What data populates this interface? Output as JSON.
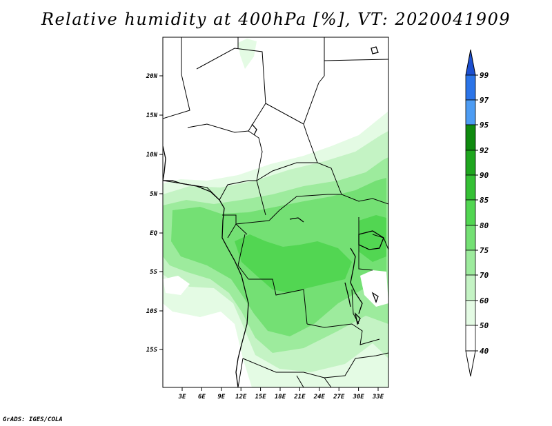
{
  "title": "Relative humidity at 400hPa [%], VT: 2020041909",
  "credit": "GrADS: IGES/COLA",
  "map": {
    "lat_labels": [
      "20N",
      "15N",
      "10N",
      "5N",
      "EQ",
      "5S",
      "10S",
      "15S"
    ],
    "lon_labels": [
      "3E",
      "6E",
      "9E",
      "12E",
      "15E",
      "18E",
      "21E",
      "24E",
      "27E",
      "30E",
      "33E"
    ]
  },
  "colorbar": {
    "labels": [
      "99",
      "97",
      "95",
      "92",
      "90",
      "85",
      "80",
      "75",
      "70",
      "60",
      "50",
      "40"
    ],
    "colors": [
      "#1c4fd0",
      "#2b74e8",
      "#4d9cf3",
      "#0f8a0f",
      "#1fa61f",
      "#35c035",
      "#52d652",
      "#74e074",
      "#9deb9d",
      "#c4f3c4",
      "#e4fbe4",
      "#ffffff"
    ]
  },
  "field_colors": {
    "c50": "#e4fbe4",
    "c60": "#c4f3c4",
    "c70": "#9deb9d",
    "c75": "#74e074",
    "c80": "#52d652"
  }
}
